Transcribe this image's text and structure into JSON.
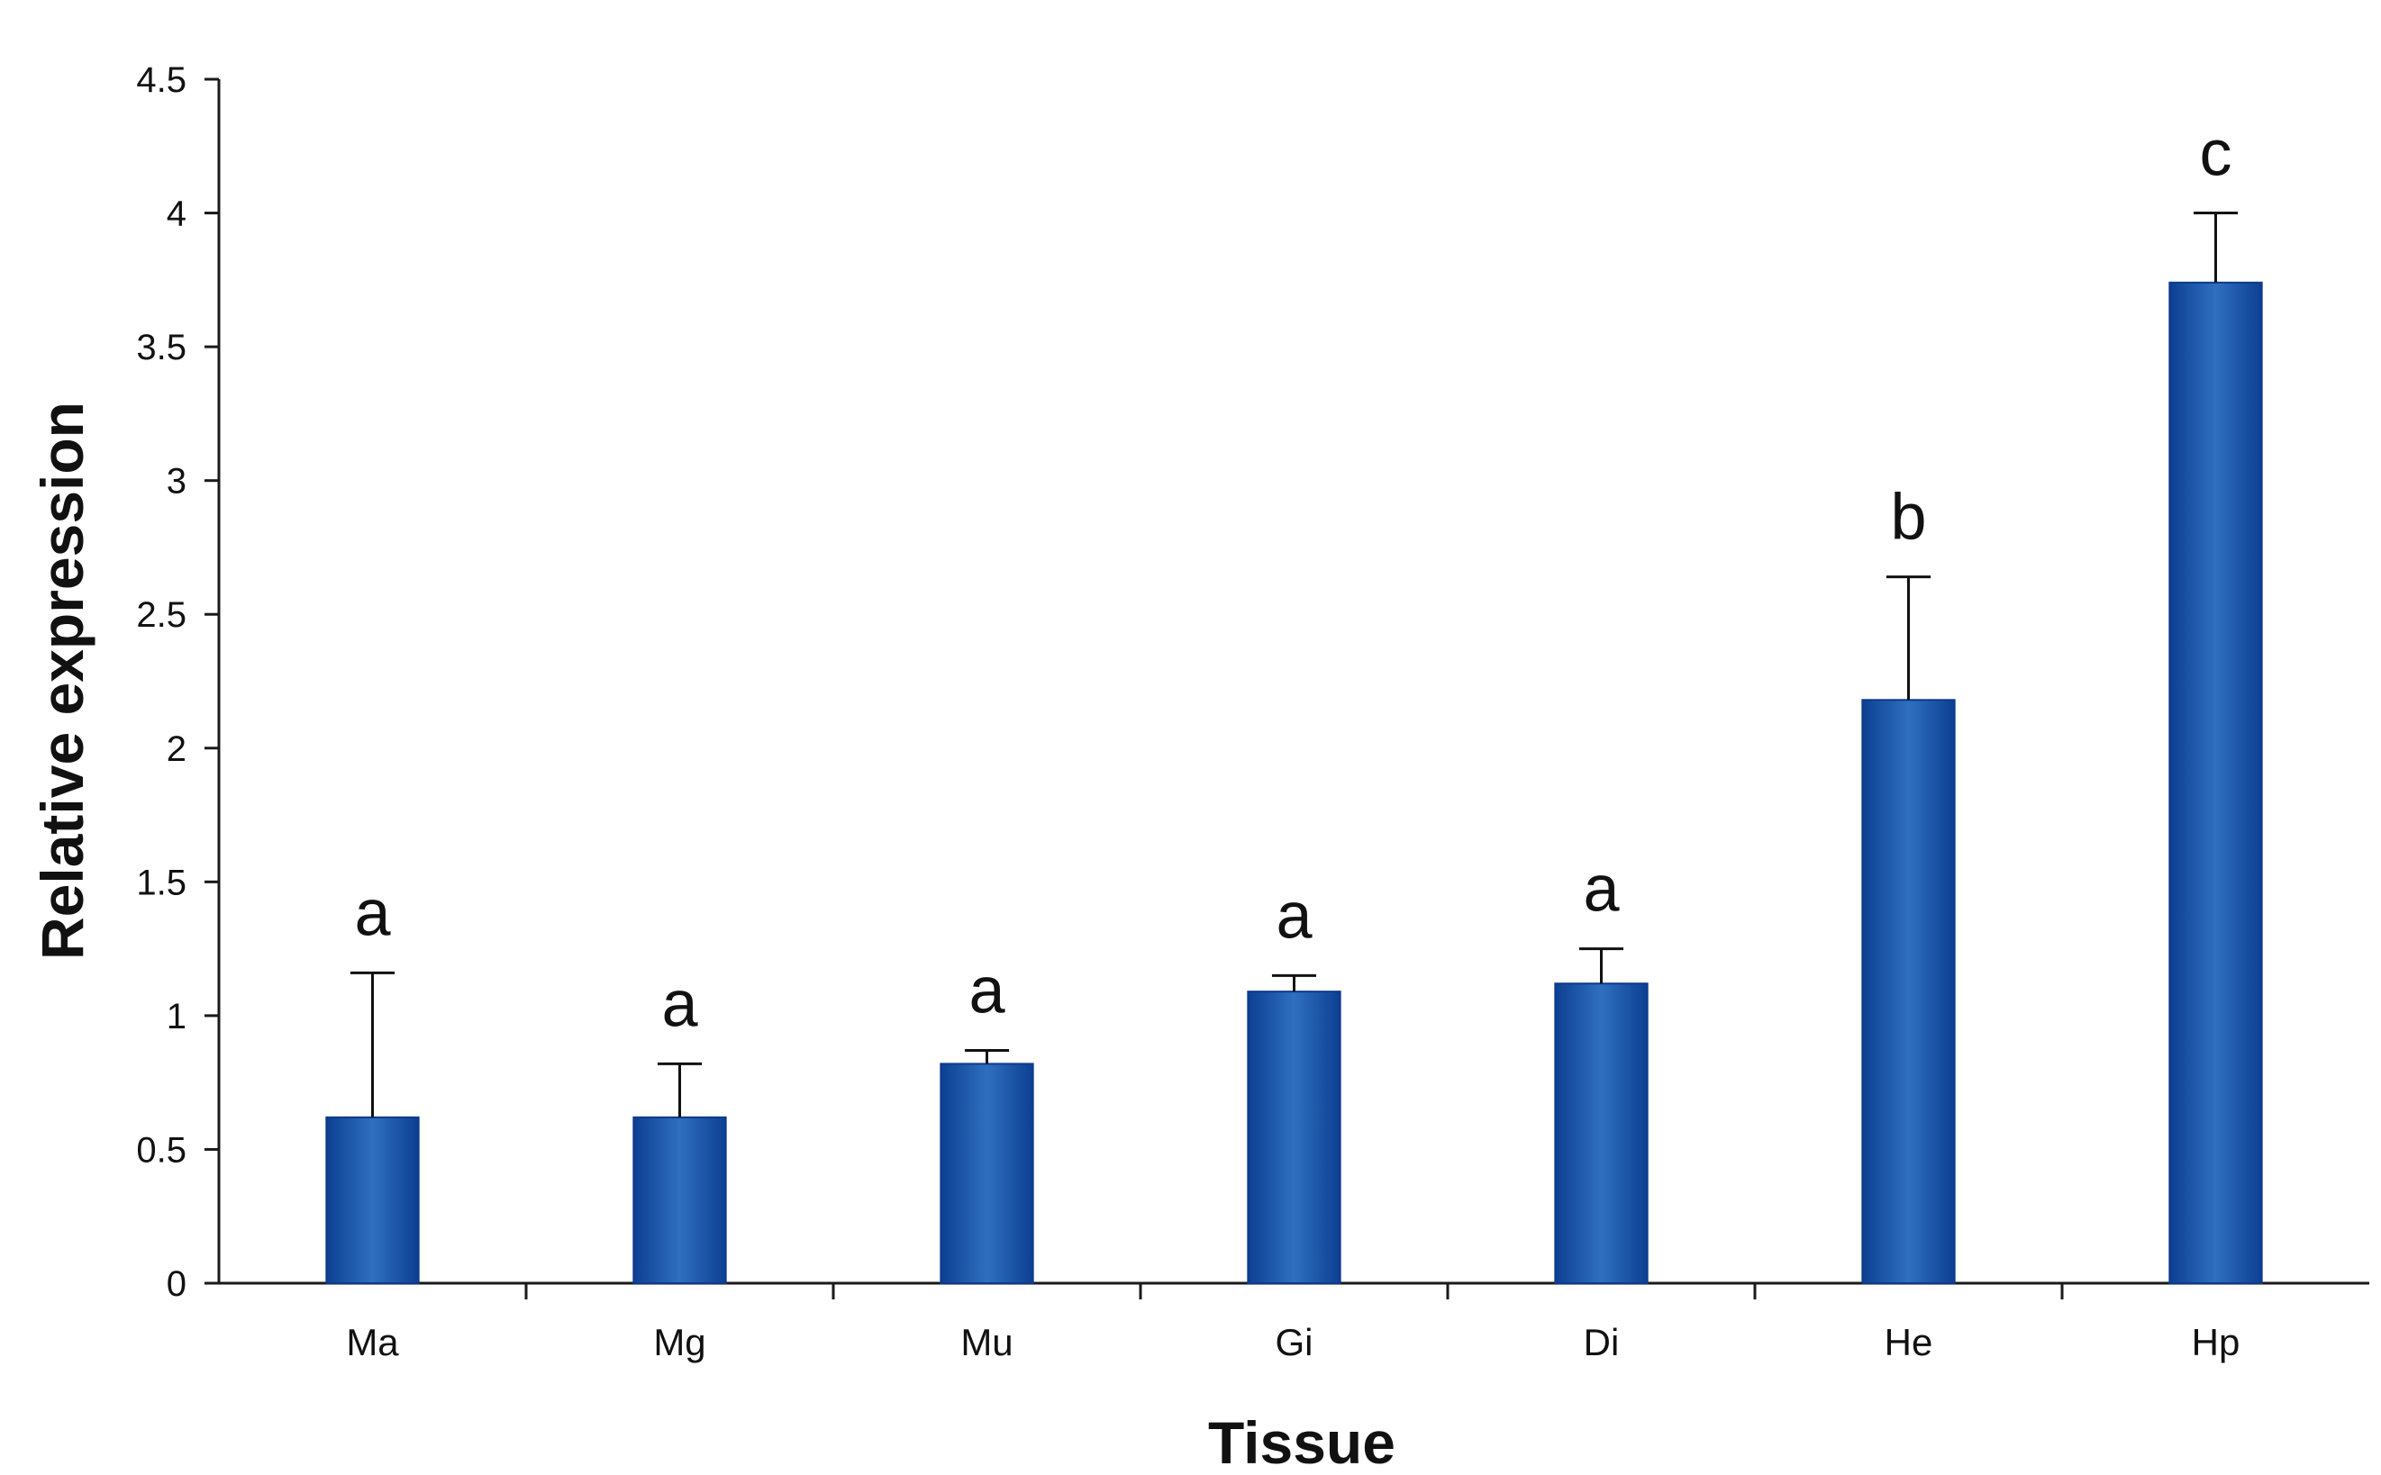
{
  "chart_data": {
    "type": "bar",
    "xlabel": "Tissue",
    "ylabel": "Relative expression",
    "ylim": [
      0,
      4.5
    ],
    "yticks": [
      "0",
      "0.5",
      "1",
      "1.5",
      "2",
      "2.5",
      "3",
      "3.5",
      "4",
      "4.5"
    ],
    "categories": [
      "Ma",
      "Mg",
      "Mu",
      "Gi",
      "Di",
      "He",
      "Hp"
    ],
    "values": [
      0.62,
      0.62,
      0.82,
      1.09,
      1.12,
      2.18,
      3.74
    ],
    "error_upper": [
      0.54,
      0.2,
      0.05,
      0.06,
      0.13,
      0.46,
      0.26
    ],
    "significance_labels": [
      "a",
      "a",
      "a",
      "a",
      "a",
      "b",
      "c"
    ],
    "bar_color": "#1f5fae",
    "bar_edge_color": "#0d3a8a",
    "grid": false,
    "legend": "none"
  }
}
